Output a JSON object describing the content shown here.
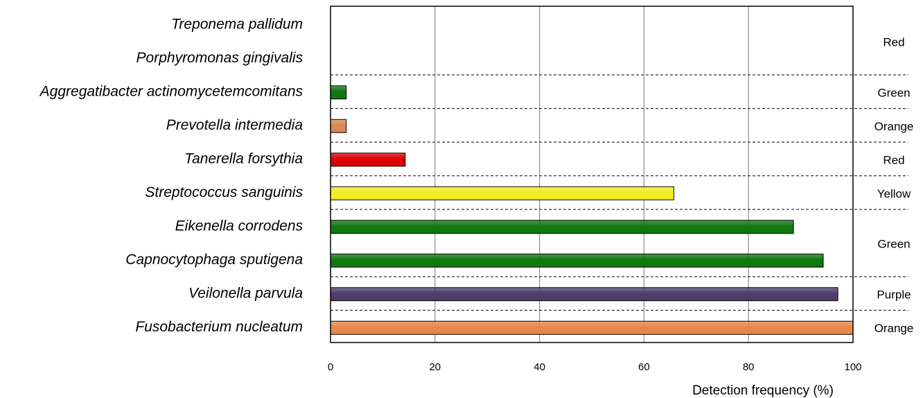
{
  "chart_data": {
    "type": "bar",
    "orientation": "horizontal",
    "xlabel": "Detection frequency (%)",
    "ylabel": "",
    "title": "",
    "xlim": [
      0,
      100
    ],
    "xticks": [
      0,
      20,
      40,
      60,
      80,
      100
    ],
    "grid": true,
    "categories": [
      "Treponema pallidum",
      "Porphyromonas gingivalis",
      "Aggregatibacter actinomycetemcomitans",
      "Prevotella intermedia",
      "Tanerella forsythia",
      "Streptococcus sanguinis",
      "Eikenella corrodens",
      "Capnocytophaga sputigena",
      "Veilonella parvula",
      "Fusobacterium nucleatum"
    ],
    "values": [
      0,
      0,
      3,
      3,
      14.3,
      65.7,
      88.6,
      94.3,
      97.1,
      100
    ],
    "bar_colors": [
      "#d40000",
      "#d40000",
      "#117711",
      "#d98a50",
      "#dd0000",
      "#f2ec22",
      "#117711",
      "#117711",
      "#4e3d6b",
      "#e8874a"
    ],
    "complexes": [
      {
        "label": "Red",
        "rows": [
          0,
          1
        ]
      },
      {
        "label": "Green",
        "rows": [
          2,
          2
        ]
      },
      {
        "label": "Orange",
        "rows": [
          3,
          3
        ]
      },
      {
        "label": "Red",
        "rows": [
          4,
          4
        ]
      },
      {
        "label": "Yellow",
        "rows": [
          5,
          5
        ]
      },
      {
        "label": "Green",
        "rows": [
          6,
          7
        ]
      },
      {
        "label": "Purple",
        "rows": [
          8,
          8
        ]
      },
      {
        "label": "Orange",
        "rows": [
          9,
          9
        ]
      }
    ]
  }
}
